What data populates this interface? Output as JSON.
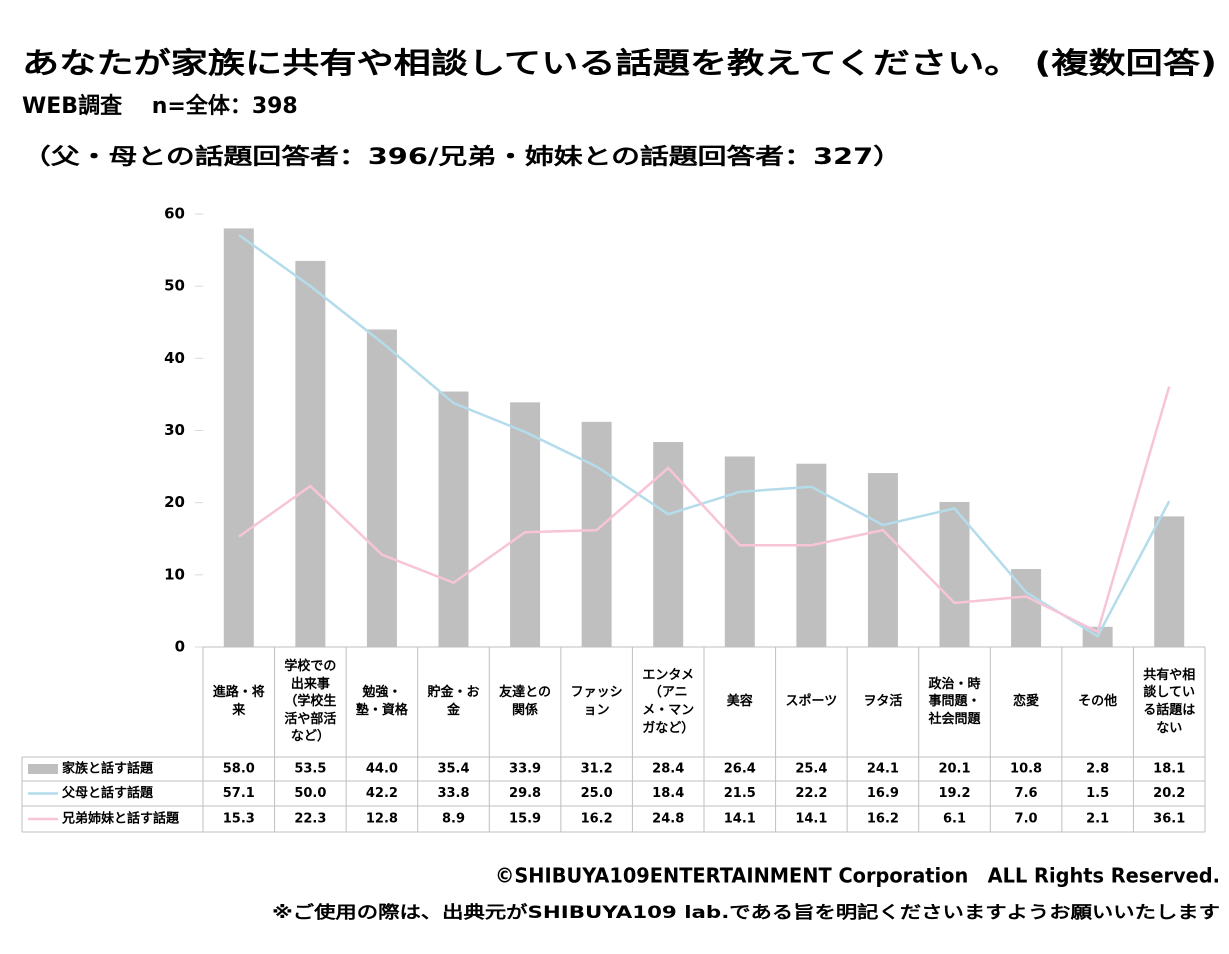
{
  "chart_data": {
    "type": "bar",
    "title": "あなたが家族に共有や相談している話題を教えてください。 (複数回答)",
    "subtitle": "WEB調査　 n=全体：398",
    "subtitle2": "（父・母との話題回答者：396/兄弟・姉妹との話題回答者：327）",
    "categories": [
      "進路・将来",
      "学校での出来事（学校生活や部活など）",
      "勉強・塾・資格",
      "貯金・お金",
      "友達との関係",
      "ファッション",
      "エンタメ（アニメ・マンガなど）",
      "美容",
      "スポーツ",
      "ヲタ活",
      "政治・時事問題・社会問題",
      "恋愛",
      "その他",
      "共有や相談している話題はない"
    ],
    "series": [
      {
        "name": "家族と話す話題",
        "type": "bar",
        "color": "#bfbfbf",
        "values": [
          58.0,
          53.5,
          44.0,
          35.4,
          33.9,
          31.2,
          28.4,
          26.4,
          25.4,
          24.1,
          20.1,
          10.8,
          2.8,
          18.1
        ],
        "value_labels": [
          "58.0",
          "53.5",
          "44.0",
          "35.4",
          "33.9",
          "31.2",
          "28.4",
          "26.4",
          "25.4",
          "24.1",
          "20.1",
          "10.8",
          "2.8",
          "18.1"
        ]
      },
      {
        "name": "父母と話す話題",
        "type": "line",
        "color": "#b4dceb",
        "values": [
          57.1,
          50.0,
          42.2,
          33.8,
          29.8,
          25.0,
          18.4,
          21.5,
          22.2,
          16.9,
          19.2,
          7.6,
          1.5,
          20.2
        ],
        "value_labels": [
          "57.1",
          "50.0",
          "42.2",
          "33.8",
          "29.8",
          "25.0",
          "18.4",
          "21.5",
          "22.2",
          "16.9",
          "19.2",
          "7.6",
          "1.5",
          "20.2"
        ]
      },
      {
        "name": "兄弟姉妹と話す話題",
        "type": "line",
        "color": "#f7c4d8",
        "values": [
          15.3,
          22.3,
          12.8,
          8.9,
          15.9,
          16.2,
          24.8,
          14.1,
          14.1,
          16.2,
          6.1,
          7.0,
          2.1,
          36.1
        ],
        "value_labels": [
          "15.3",
          "22.3",
          "12.8",
          "8.9",
          "15.9",
          "16.2",
          "24.8",
          "14.1",
          "14.1",
          "16.2",
          "6.1",
          "7.0",
          "2.1",
          "36.1"
        ]
      }
    ],
    "ylim": [
      0,
      60
    ],
    "yticks": [
      0,
      10,
      20,
      30,
      40,
      50,
      60
    ],
    "grid": false,
    "footer": "©SHIBUYA109ENTERTAINMENT Corporation　ALL Rights Reserved.",
    "footer2": "※ご使用の際は、出典元がSHIBUYA109 lab.である旨を明記くださいますようお願いいたします"
  }
}
